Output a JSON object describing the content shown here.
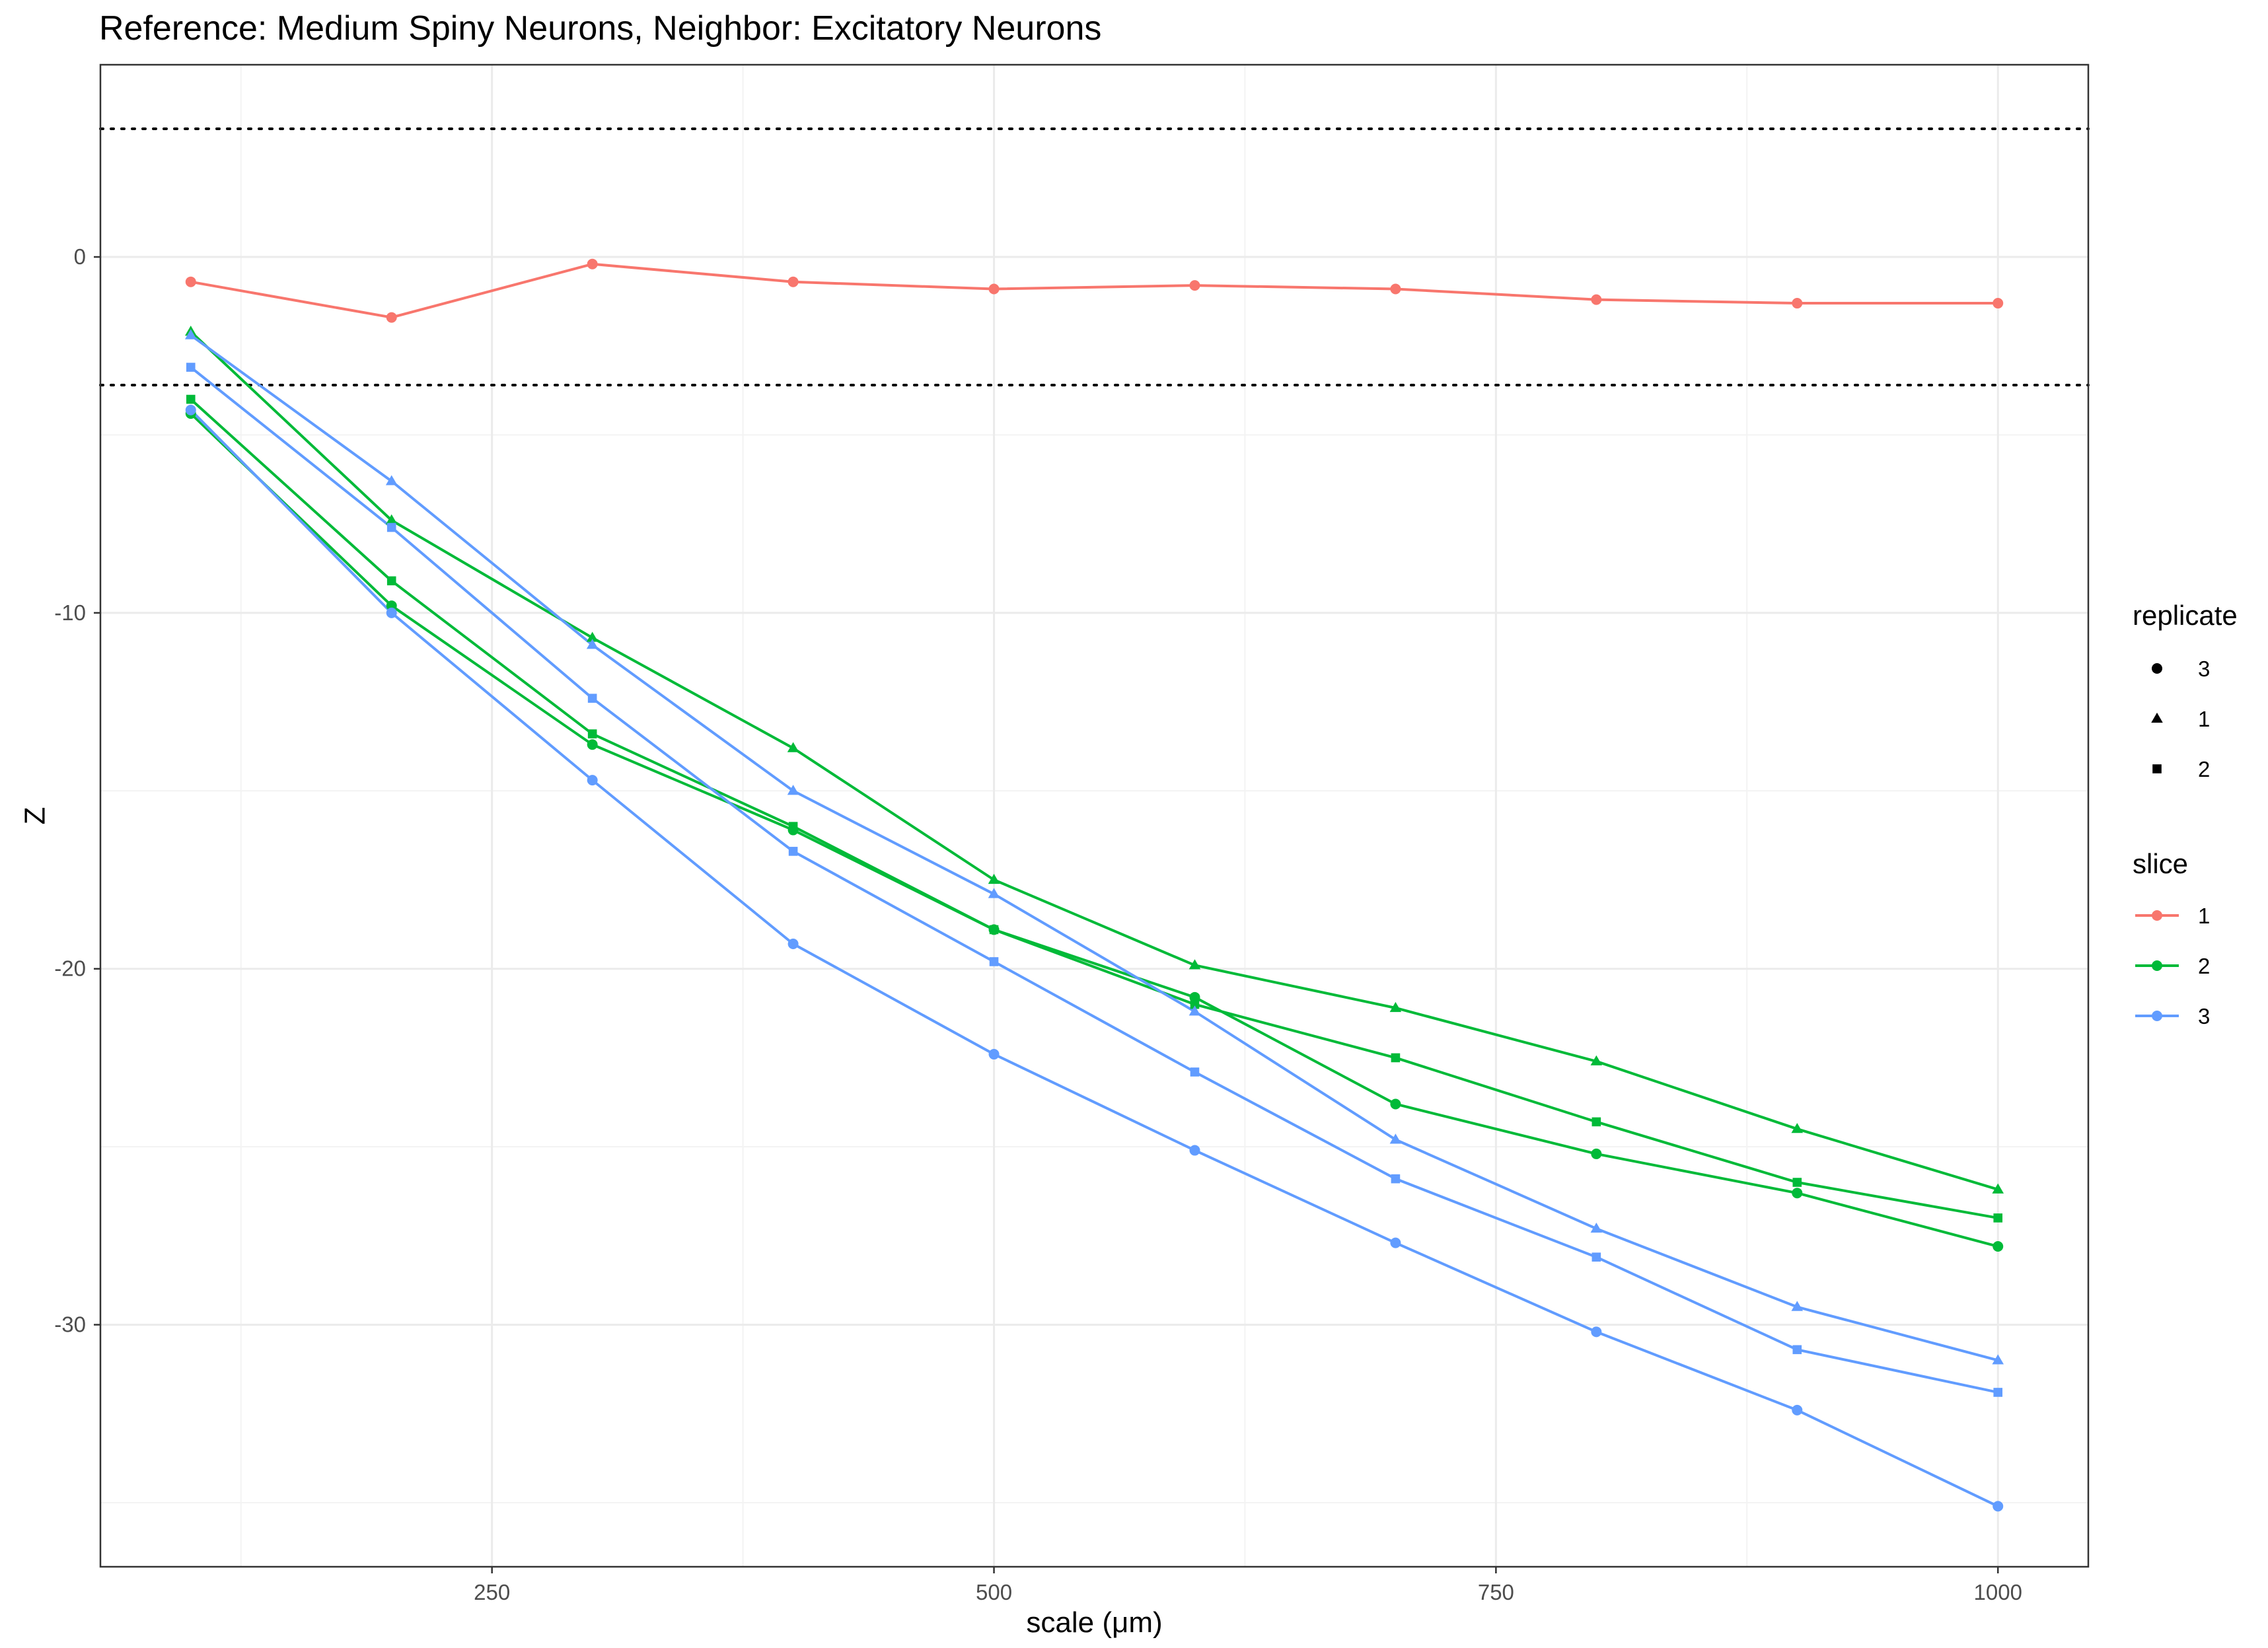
{
  "chart_data": {
    "type": "line",
    "title": "Reference: Medium Spiny Neurons, Neighbor: Excitatory Neurons",
    "xlabel": "scale (μm)",
    "ylabel": "Z",
    "xlim": [
      55,
      1045
    ],
    "ylim": [
      -36.8,
      5.4
    ],
    "xticks": [
      250,
      500,
      750,
      1000
    ],
    "xtick_labels": [
      "250",
      "500",
      "750",
      "1000"
    ],
    "yticks": [
      0,
      -10,
      -20,
      -30
    ],
    "ytick_labels": [
      "0",
      "-10",
      "-20",
      "-30"
    ],
    "x_minor": [
      125,
      375,
      625,
      875
    ],
    "y_minor": [
      -5,
      -15,
      -25,
      -35
    ],
    "reference_lines": [
      3.6,
      -3.6
    ],
    "grid": true,
    "legend_placement": "right",
    "x": [
      100,
      200,
      300,
      400,
      500,
      600,
      700,
      800,
      900,
      1000
    ],
    "slice_colors": {
      "1": "#F8766D",
      "2": "#00BA38",
      "3": "#619CFF"
    },
    "series": [
      {
        "slice": "1",
        "replicate": "3",
        "values": [
          -0.7,
          -1.7,
          -0.2,
          -0.7,
          -0.9,
          -0.8,
          -0.9,
          -1.2,
          -1.3,
          -1.3
        ]
      },
      {
        "slice": "2",
        "replicate": "3",
        "values": [
          -4.4,
          -9.8,
          -13.7,
          -16.1,
          -18.9,
          -20.8,
          -23.8,
          -25.2,
          -26.3,
          -27.8
        ]
      },
      {
        "slice": "2",
        "replicate": "1",
        "values": [
          -2.1,
          -7.4,
          -10.7,
          -13.8,
          -17.5,
          -19.9,
          -21.1,
          -22.6,
          -24.5,
          -26.2
        ]
      },
      {
        "slice": "2",
        "replicate": "2",
        "values": [
          -4.0,
          -9.1,
          -13.4,
          -16.0,
          -18.9,
          -21.0,
          -22.5,
          -24.3,
          -26.0,
          -27.0
        ]
      },
      {
        "slice": "3",
        "replicate": "3",
        "values": [
          -4.3,
          -10.0,
          -14.7,
          -19.3,
          -22.4,
          -25.1,
          -27.7,
          -30.2,
          -32.4,
          -35.1
        ]
      },
      {
        "slice": "3",
        "replicate": "1",
        "values": [
          -2.2,
          -6.3,
          -10.9,
          -15.0,
          -17.9,
          -21.2,
          -24.8,
          -27.3,
          -29.5,
          -31.0
        ]
      },
      {
        "slice": "3",
        "replicate": "2",
        "values": [
          -3.1,
          -7.6,
          -12.4,
          -16.7,
          -19.8,
          -22.9,
          -25.9,
          -28.1,
          -30.7,
          -31.9
        ]
      }
    ]
  },
  "legend": {
    "replicate": {
      "title": "replicate",
      "items": [
        {
          "label": "3",
          "shape": "circle"
        },
        {
          "label": "1",
          "shape": "triangle"
        },
        {
          "label": "2",
          "shape": "square"
        }
      ]
    },
    "slice": {
      "title": "slice",
      "items": [
        {
          "label": "1",
          "color": "#F8766D"
        },
        {
          "label": "2",
          "color": "#00BA38"
        },
        {
          "label": "3",
          "color": "#619CFF"
        }
      ]
    }
  }
}
